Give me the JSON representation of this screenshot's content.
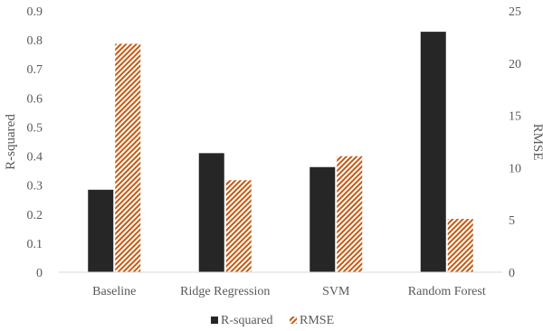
{
  "chart_data": {
    "type": "bar",
    "categories": [
      "Baseline",
      "Ridge Regression",
      "SVM",
      "Random Forest"
    ],
    "series": [
      {
        "name": "R-squared",
        "axis": "left",
        "values": [
          0.284,
          0.41,
          0.362,
          0.828
        ],
        "color": "#262626",
        "pattern": "solid"
      },
      {
        "name": "RMSE",
        "axis": "right",
        "values": [
          21.85,
          8.8,
          11.1,
          5.1
        ],
        "color": "#C55A11",
        "pattern": "diagonal-hatch"
      }
    ],
    "ylabel": "R-squared",
    "y2label": "RMSE",
    "ylim": [
      0,
      0.9
    ],
    "y2lim": [
      0,
      25
    ],
    "yticks": [
      "0",
      "0.1",
      "0.2",
      "0.3",
      "0.4",
      "0.5",
      "0.6",
      "0.7",
      "0.8",
      "0.9"
    ],
    "y2ticks": [
      "0",
      "5",
      "10",
      "15",
      "20",
      "25"
    ],
    "grid": false,
    "legend_position": "bottom"
  }
}
